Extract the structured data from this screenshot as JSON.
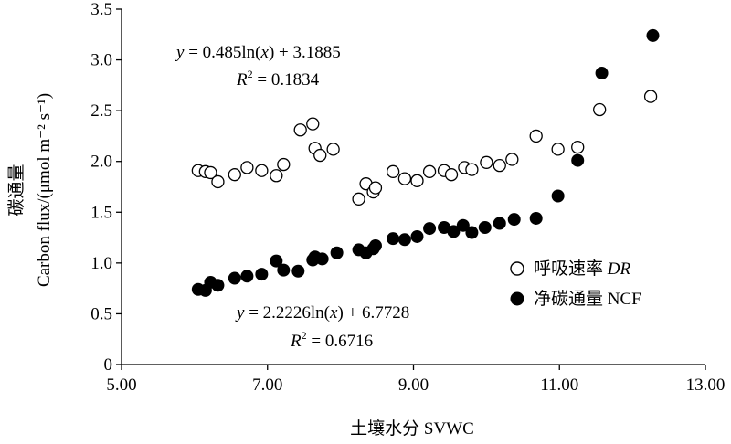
{
  "chart_data": {
    "type": "scatter",
    "xlabel": "土壤水分 SVWC",
    "ylabel_line1": "碳通量",
    "ylabel_line2": "Carbon flux/(μmol m⁻² s⁻¹)",
    "xlim": [
      5.0,
      13.0
    ],
    "ylim": [
      0,
      3.5
    ],
    "x_ticks": [
      "5.00",
      "7.00",
      "9.00",
      "11.00",
      "13.00"
    ],
    "y_ticks": [
      "0",
      "0.5",
      "1.0",
      "1.5",
      "2.0",
      "2.5",
      "3.0",
      "3.5"
    ],
    "grid": false,
    "legend_position": "right",
    "series": [
      {
        "name": "呼吸速率 DR",
        "legend_main": "呼吸速率 ",
        "legend_italic": "DR",
        "marker": "open-circle",
        "points": [
          [
            6.05,
            1.91
          ],
          [
            6.15,
            1.9
          ],
          [
            6.22,
            1.89
          ],
          [
            6.32,
            1.8
          ],
          [
            6.55,
            1.87
          ],
          [
            6.72,
            1.94
          ],
          [
            6.92,
            1.91
          ],
          [
            7.12,
            1.86
          ],
          [
            7.22,
            1.97
          ],
          [
            7.45,
            2.31
          ],
          [
            7.62,
            2.37
          ],
          [
            7.65,
            2.13
          ],
          [
            7.72,
            2.06
          ],
          [
            7.9,
            2.12
          ],
          [
            8.25,
            1.63
          ],
          [
            8.35,
            1.78
          ],
          [
            8.45,
            1.7
          ],
          [
            8.48,
            1.74
          ],
          [
            8.72,
            1.9
          ],
          [
            8.88,
            1.83
          ],
          [
            9.05,
            1.81
          ],
          [
            9.22,
            1.9
          ],
          [
            9.42,
            1.91
          ],
          [
            9.52,
            1.87
          ],
          [
            9.7,
            1.94
          ],
          [
            9.8,
            1.92
          ],
          [
            10.0,
            1.99
          ],
          [
            10.18,
            1.96
          ],
          [
            10.35,
            2.02
          ],
          [
            10.68,
            2.25
          ],
          [
            10.98,
            2.12
          ],
          [
            11.25,
            2.14
          ],
          [
            11.55,
            2.51
          ],
          [
            12.25,
            2.64
          ]
        ],
        "trend": {
          "a": 0.485,
          "b": 3.1885,
          "x_range": [
            6.0,
            12.25
          ]
        },
        "equation_prefix": "y",
        "equation_body": " = 0.485ln(",
        "equation_var": "x",
        "equation_suffix": ") + 3.1885",
        "r2_label": "R",
        "r2_exp": "2",
        "r2_value": " = 0.1834"
      },
      {
        "name": "净碳通量 NCF",
        "legend_main": "净碳通量 NCF",
        "legend_italic": "",
        "marker": "filled-circle",
        "points": [
          [
            6.05,
            0.74
          ],
          [
            6.15,
            0.73
          ],
          [
            6.22,
            0.81
          ],
          [
            6.32,
            0.78
          ],
          [
            6.55,
            0.85
          ],
          [
            6.72,
            0.87
          ],
          [
            6.92,
            0.89
          ],
          [
            7.12,
            1.02
          ],
          [
            7.22,
            0.93
          ],
          [
            7.42,
            0.92
          ],
          [
            7.62,
            1.03
          ],
          [
            7.65,
            1.06
          ],
          [
            7.75,
            1.04
          ],
          [
            7.95,
            1.1
          ],
          [
            8.25,
            1.13
          ],
          [
            8.35,
            1.1
          ],
          [
            8.45,
            1.14
          ],
          [
            8.48,
            1.17
          ],
          [
            8.72,
            1.24
          ],
          [
            8.88,
            1.23
          ],
          [
            9.05,
            1.26
          ],
          [
            9.22,
            1.34
          ],
          [
            9.42,
            1.35
          ],
          [
            9.55,
            1.31
          ],
          [
            9.68,
            1.37
          ],
          [
            9.8,
            1.3
          ],
          [
            9.98,
            1.35
          ],
          [
            10.18,
            1.39
          ],
          [
            10.38,
            1.43
          ],
          [
            10.68,
            1.44
          ],
          [
            10.98,
            1.66
          ],
          [
            11.25,
            2.01
          ],
          [
            11.58,
            2.87
          ],
          [
            12.28,
            3.24
          ]
        ],
        "trend": {
          "a": 2.2226,
          "b": 6.7728,
          "x_range": [
            6.0,
            12.25
          ]
        },
        "equation_prefix": "y",
        "equation_body": " = 2.2226ln(",
        "equation_var": "x",
        "equation_suffix": ") + 6.7728",
        "r2_label": "R",
        "r2_exp": "2",
        "r2_value": " = 0.6716"
      }
    ]
  }
}
